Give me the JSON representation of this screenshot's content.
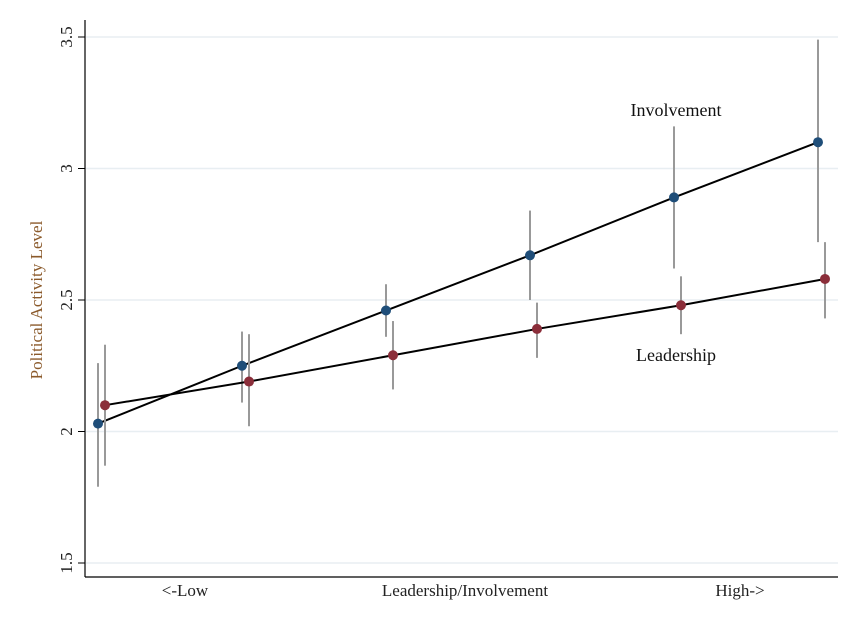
{
  "chart_data": {
    "type": "line",
    "title": "",
    "xlabel": "",
    "ylabel": "Political Activity Level",
    "ylim": [
      1.5,
      3.5
    ],
    "yticks": [
      "1.5",
      "2",
      "2.5",
      "3",
      "3.5"
    ],
    "xtick_labels": [
      "<-Low",
      "Leadership/Involvement",
      "High->"
    ],
    "grid": "horizontal",
    "x": [
      1,
      2,
      3,
      4,
      5,
      6
    ],
    "series": [
      {
        "name": "Involvement",
        "color": "#1f4e79",
        "values": [
          2.03,
          2.25,
          2.46,
          2.67,
          2.89,
          3.1
        ],
        "ci_low": [
          1.79,
          2.11,
          2.36,
          2.5,
          2.62,
          2.72
        ],
        "ci_high": [
          2.26,
          2.38,
          2.56,
          2.84,
          3.16,
          3.49
        ]
      },
      {
        "name": "Leadership",
        "color": "#8b2e3a",
        "values": [
          2.1,
          2.19,
          2.29,
          2.39,
          2.48,
          2.58
        ],
        "ci_low": [
          1.87,
          2.02,
          2.16,
          2.28,
          2.37,
          2.43
        ],
        "ci_high": [
          2.33,
          2.37,
          2.42,
          2.49,
          2.59,
          2.72
        ]
      }
    ],
    "ci_color": "#999999",
    "ylabel_color": "#8b5a2b"
  }
}
